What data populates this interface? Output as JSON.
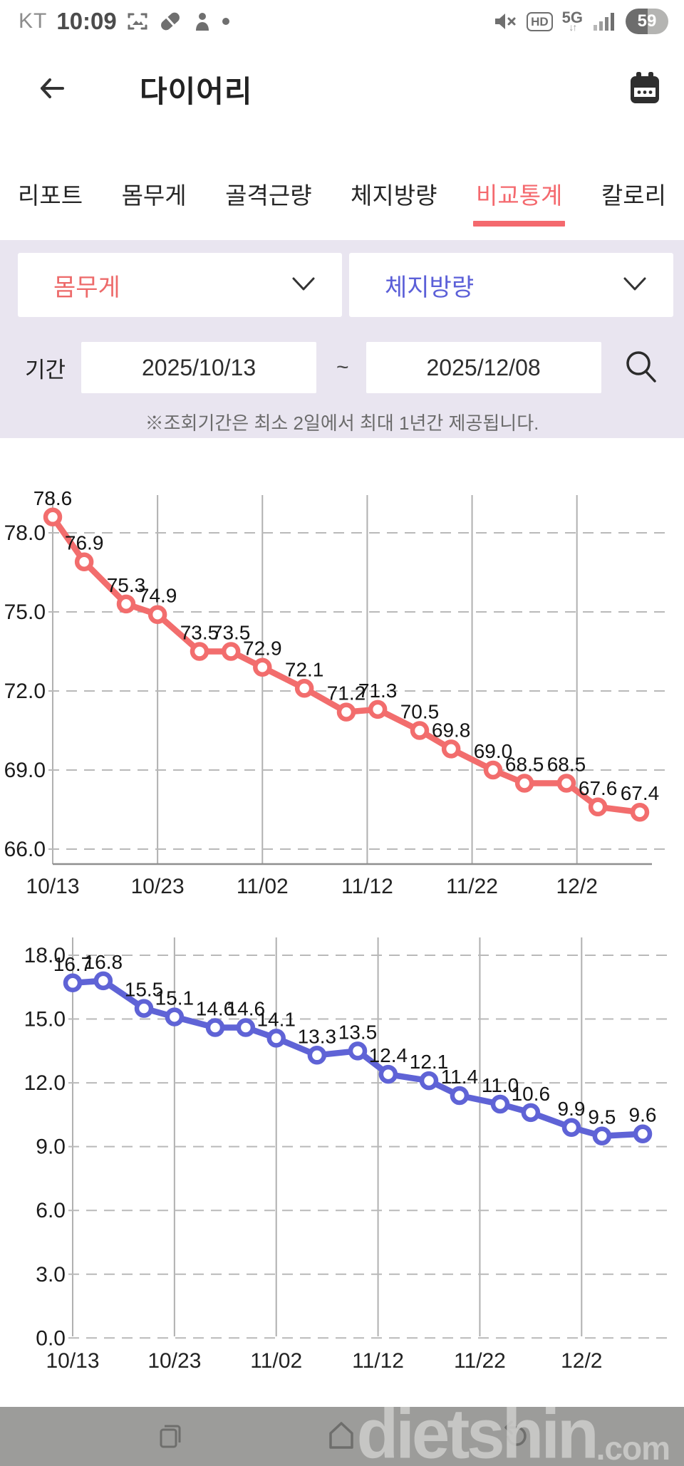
{
  "status_bar": {
    "carrier": "KT",
    "time": "10:09",
    "hd": "HD",
    "network": "5G",
    "battery": "59"
  },
  "header": {
    "title": "다이어리"
  },
  "tabs": {
    "items": [
      {
        "label": "리포트"
      },
      {
        "label": "몸무게"
      },
      {
        "label": "골격근량"
      },
      {
        "label": "체지방량"
      },
      {
        "label": "비교통계"
      },
      {
        "label": "칼로리"
      }
    ],
    "active_label": "비교통계"
  },
  "filters": {
    "metric_left": {
      "value": "몸무게",
      "color": "#ed6a6a"
    },
    "metric_right": {
      "value": "체지방량",
      "color": "#5c60d8"
    },
    "period": {
      "label": "기간",
      "start": "2025/10/13",
      "separator": "~",
      "end": "2025/12/08"
    },
    "note": "※조회기간은 최소 2일에서 최대 1년간 제공됩니다."
  },
  "chart_data": [
    {
      "type": "line",
      "name": "몸무게",
      "color": "#f26d6d",
      "values": [
        78.6,
        76.9,
        75.3,
        74.9,
        73.5,
        73.5,
        72.9,
        72.1,
        71.2,
        71.3,
        70.5,
        69.8,
        69.0,
        68.5,
        68.5,
        67.6,
        67.4
      ],
      "x_day_offsets": [
        0,
        3,
        7,
        10,
        14,
        17,
        20,
        24,
        28,
        31,
        35,
        38,
        42,
        45,
        49,
        52,
        56
      ],
      "x_tick_labels": [
        "10/13",
        "10/23",
        "11/02",
        "11/12",
        "11/22",
        "12/2"
      ],
      "x_tick_days": [
        0,
        10,
        20,
        30,
        40,
        50
      ],
      "y_ticks": [
        66.0,
        69.0,
        72.0,
        75.0,
        78.0
      ],
      "ylim": [
        65.4,
        79.4
      ],
      "grid": true,
      "legend": "none",
      "marker": "open-circle"
    },
    {
      "type": "line",
      "name": "체지방량",
      "color": "#5f63d6",
      "values": [
        16.7,
        16.8,
        15.5,
        15.1,
        14.6,
        14.6,
        14.1,
        13.3,
        13.5,
        12.4,
        12.1,
        11.4,
        11.0,
        10.6,
        9.9,
        9.5,
        9.6
      ],
      "x_day_offsets": [
        0,
        3,
        7,
        10,
        14,
        17,
        20,
        24,
        28,
        31,
        35,
        38,
        42,
        45,
        49,
        52,
        56
      ],
      "x_tick_labels": [
        "10/13",
        "10/23",
        "11/02",
        "11/12",
        "11/22",
        "12/2"
      ],
      "x_tick_days": [
        0,
        10,
        20,
        30,
        40,
        50
      ],
      "y_ticks": [
        0.0,
        3.0,
        6.0,
        9.0,
        12.0,
        15.0,
        18.0
      ],
      "ylim": [
        0,
        18.9
      ],
      "grid": true,
      "legend": "none",
      "marker": "open-circle"
    }
  ],
  "watermark": {
    "text": "dietshin",
    "suffix": ".com"
  }
}
